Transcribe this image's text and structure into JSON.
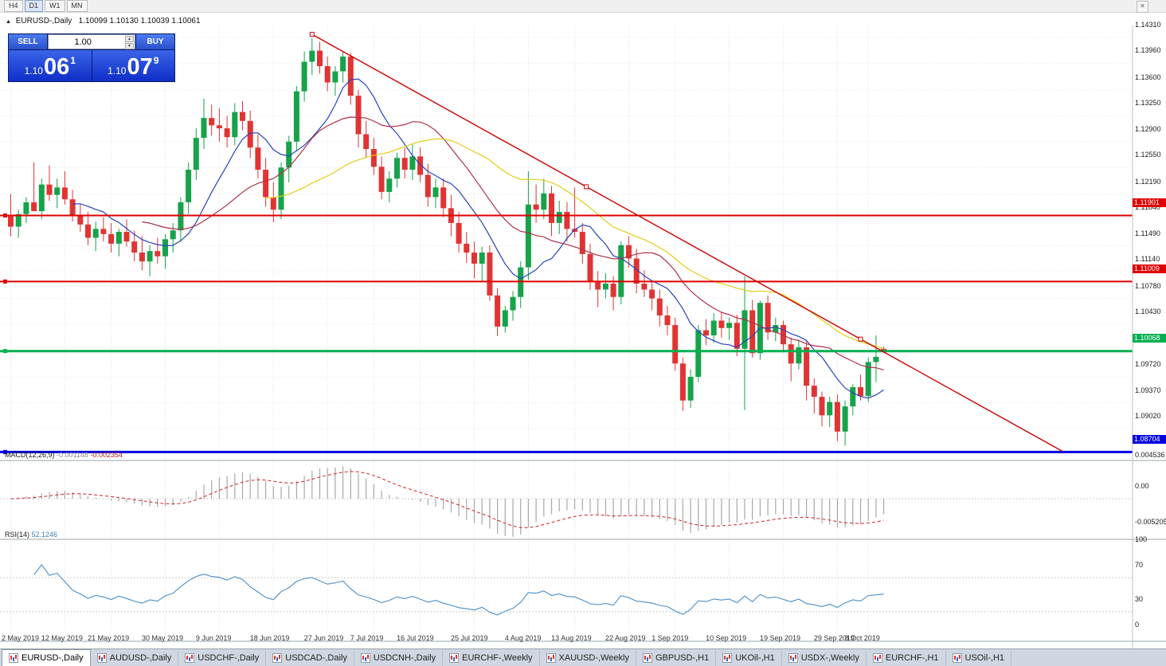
{
  "toolbar": {
    "timeframes": [
      {
        "label": "H4",
        "active": false
      },
      {
        "label": "D1",
        "active": true
      },
      {
        "label": "W1",
        "active": false
      },
      {
        "label": "MN",
        "active": false
      }
    ]
  },
  "chart": {
    "collapse_arrow": "▲",
    "symbol_period": "EURUSD-,Daily",
    "ohlc": "1.10099 1.10130 1.10039 1.10061"
  },
  "one_click": {
    "sell_label": "SELL",
    "buy_label": "BUY",
    "volume": "1.00",
    "sell_price_small": "1.10",
    "sell_price_big": "06",
    "sell_price_sup": "1",
    "buy_price_small": "1.10",
    "buy_price_big": "07",
    "buy_price_sup": "9"
  },
  "chart_data": {
    "type": "candlestick",
    "symbol": "EURUSD-",
    "timeframe": "Daily",
    "ohlc_title": "1.10099 1.10130 1.10039 1.10061",
    "price_range": {
      "max": 1.1447,
      "min": 1.086
    },
    "candle_colors": {
      "up": "#16a34a",
      "down": "#e03434"
    },
    "candles": [
      [
        1.119,
        1.1219,
        1.1162,
        1.1175
      ],
      [
        1.1175,
        1.1198,
        1.116,
        1.1192
      ],
      [
        1.1192,
        1.1215,
        1.118,
        1.1208
      ],
      [
        1.1208,
        1.1262,
        1.1196,
        1.1196
      ],
      [
        1.1196,
        1.124,
        1.1185,
        1.1232
      ],
      [
        1.1232,
        1.1258,
        1.121,
        1.1218
      ],
      [
        1.1218,
        1.124,
        1.12,
        1.1228
      ],
      [
        1.1228,
        1.125,
        1.1205,
        1.1212
      ],
      [
        1.1212,
        1.1225,
        1.1182,
        1.119
      ],
      [
        1.119,
        1.1205,
        1.1168,
        1.1178
      ],
      [
        1.1178,
        1.1195,
        1.115,
        1.116
      ],
      [
        1.116,
        1.1182,
        1.1142,
        1.1172
      ],
      [
        1.1172,
        1.1188,
        1.1155,
        1.1165
      ],
      [
        1.1165,
        1.118,
        1.114,
        1.1152
      ],
      [
        1.1152,
        1.1172,
        1.1135,
        1.1168
      ],
      [
        1.1168,
        1.1185,
        1.1148,
        1.1155
      ],
      [
        1.1155,
        1.117,
        1.1128,
        1.114
      ],
      [
        1.114,
        1.1162,
        1.1116,
        1.1128
      ],
      [
        1.1128,
        1.115,
        1.1108,
        1.1142
      ],
      [
        1.1142,
        1.116,
        1.1125,
        1.1135
      ],
      [
        1.1135,
        1.1165,
        1.1118,
        1.1158
      ],
      [
        1.1158,
        1.118,
        1.114,
        1.117
      ],
      [
        1.117,
        1.1215,
        1.1155,
        1.1208
      ],
      [
        1.1208,
        1.1262,
        1.1192,
        1.1252
      ],
      [
        1.1252,
        1.1308,
        1.1238,
        1.1295
      ],
      [
        1.1295,
        1.1348,
        1.128,
        1.1322
      ],
      [
        1.1322,
        1.134,
        1.1298,
        1.1312
      ],
      [
        1.1312,
        1.1335,
        1.129,
        1.1308
      ],
      [
        1.1308,
        1.1325,
        1.1282,
        1.1296
      ],
      [
        1.1296,
        1.1342,
        1.1285,
        1.133
      ],
      [
        1.133,
        1.1345,
        1.1305,
        1.1318
      ],
      [
        1.1318,
        1.1332,
        1.1268,
        1.1282
      ],
      [
        1.1282,
        1.13,
        1.124,
        1.1252
      ],
      [
        1.1252,
        1.1268,
        1.1202,
        1.1215
      ],
      [
        1.1215,
        1.1235,
        1.1181,
        1.1198
      ],
      [
        1.1198,
        1.1262,
        1.1185,
        1.1255
      ],
      [
        1.1255,
        1.1298,
        1.1235,
        1.129
      ],
      [
        1.129,
        1.1365,
        1.1278,
        1.1358
      ],
      [
        1.1358,
        1.1412,
        1.1344,
        1.1398
      ],
      [
        1.1398,
        1.143,
        1.138,
        1.1413
      ],
      [
        1.1413,
        1.1425,
        1.1382,
        1.1392
      ],
      [
        1.1392,
        1.1405,
        1.1358,
        1.137
      ],
      [
        1.137,
        1.1392,
        1.1352,
        1.1385
      ],
      [
        1.1385,
        1.1412,
        1.137,
        1.1405
      ],
      [
        1.1405,
        1.141,
        1.134,
        1.1352
      ],
      [
        1.1352,
        1.136,
        1.1282,
        1.13
      ],
      [
        1.13,
        1.1318,
        1.1268,
        1.128
      ],
      [
        1.128,
        1.1295,
        1.1245,
        1.1256
      ],
      [
        1.1256,
        1.127,
        1.1212,
        1.1222
      ],
      [
        1.1222,
        1.125,
        1.1208,
        1.124
      ],
      [
        1.124,
        1.1275,
        1.1228,
        1.1268
      ],
      [
        1.1268,
        1.1282,
        1.124,
        1.1252
      ],
      [
        1.1252,
        1.1286,
        1.1238,
        1.127
      ],
      [
        1.127,
        1.1282,
        1.1235,
        1.1245
      ],
      [
        1.1245,
        1.126,
        1.1202,
        1.1215
      ],
      [
        1.1215,
        1.124,
        1.12,
        1.1228
      ],
      [
        1.1228,
        1.124,
        1.1188,
        1.12
      ],
      [
        1.12,
        1.1218,
        1.1162,
        1.118
      ],
      [
        1.118,
        1.1195,
        1.114,
        1.1152
      ],
      [
        1.1152,
        1.1168,
        1.1126,
        1.114
      ],
      [
        1.114,
        1.1155,
        1.1105,
        1.1125
      ],
      [
        1.1125,
        1.1148,
        1.1101,
        1.114
      ],
      [
        1.114,
        1.115,
        1.1075,
        1.1082
      ],
      [
        1.1082,
        1.1092,
        1.1027,
        1.104
      ],
      [
        1.104,
        1.1068,
        1.1032,
        1.1062
      ],
      [
        1.1062,
        1.1088,
        1.1048,
        1.108
      ],
      [
        1.108,
        1.1128,
        1.1065,
        1.112
      ],
      [
        1.112,
        1.125,
        1.1103,
        1.1205
      ],
      [
        1.1205,
        1.1232,
        1.118,
        1.1198
      ],
      [
        1.1198,
        1.124,
        1.1185,
        1.122
      ],
      [
        1.122,
        1.123,
        1.1162,
        1.118
      ],
      [
        1.118,
        1.121,
        1.1165,
        1.1195
      ],
      [
        1.1195,
        1.1208,
        1.1155,
        1.1172
      ],
      [
        1.1172,
        1.1228,
        1.116,
        1.1168
      ],
      [
        1.1168,
        1.118,
        1.1125,
        1.1138
      ],
      [
        1.1138,
        1.1152,
        1.109,
        1.11
      ],
      [
        1.11,
        1.1115,
        1.1066,
        1.109
      ],
      [
        1.109,
        1.1112,
        1.1078,
        1.1098
      ],
      [
        1.1098,
        1.1108,
        1.1062,
        1.108
      ],
      [
        1.108,
        1.1155,
        1.107,
        1.115
      ],
      [
        1.115,
        1.1162,
        1.112,
        1.1132
      ],
      [
        1.1132,
        1.1145,
        1.1085,
        1.1098
      ],
      [
        1.1098,
        1.1116,
        1.108,
        1.109
      ],
      [
        1.109,
        1.1102,
        1.1062,
        1.1078
      ],
      [
        1.1078,
        1.109,
        1.104,
        1.1055
      ],
      [
        1.1055,
        1.1068,
        1.1028,
        1.1042
      ],
      [
        1.1042,
        1.1052,
        1.098,
        1.099
      ],
      [
        1.099,
        1.0998,
        1.0926,
        1.094
      ],
      [
        1.094,
        1.0982,
        1.093,
        1.0972
      ],
      [
        1.0972,
        1.1042,
        1.0965,
        1.1035
      ],
      [
        1.1035,
        1.105,
        1.1015,
        1.1028
      ],
      [
        1.1028,
        1.1058,
        1.1018,
        1.1048
      ],
      [
        1.1048,
        1.106,
        1.1025,
        1.1038
      ],
      [
        1.1038,
        1.1052,
        1.1022,
        1.1045
      ],
      [
        1.1045,
        1.1056,
        1.1,
        1.101
      ],
      [
        1.101,
        1.1108,
        1.0927,
        1.1062
      ],
      [
        1.1062,
        1.1076,
        1.0998,
        1.1004
      ],
      [
        1.1004,
        1.1075,
        1.0995,
        1.1072
      ],
      [
        1.1072,
        1.1082,
        1.1022,
        1.1032
      ],
      [
        1.1032,
        1.1052,
        1.102,
        1.1042
      ],
      [
        1.1042,
        1.1048,
        1.1005,
        1.1016
      ],
      [
        1.1016,
        1.1025,
        1.0966,
        1.099
      ],
      [
        1.099,
        1.1022,
        1.0982,
        1.1012
      ],
      [
        1.1012,
        1.102,
        1.094,
        1.096
      ],
      [
        1.096,
        1.097,
        1.0922,
        1.0945
      ],
      [
        1.0945,
        1.0952,
        1.0905,
        1.092
      ],
      [
        1.092,
        1.0945,
        1.0904,
        1.0938
      ],
      [
        1.0938,
        1.0948,
        1.0885,
        1.0898
      ],
      [
        1.0898,
        1.094,
        1.0879,
        1.0932
      ],
      [
        1.0932,
        1.0962,
        1.092,
        1.0958
      ],
      [
        1.0958,
        1.0975,
        1.094,
        1.0946
      ],
      [
        1.0946,
        1.0998,
        1.0938,
        1.0992
      ],
      [
        1.0992,
        1.1028,
        1.0965,
        1.0999
      ],
      [
        1.10099,
        1.1013,
        1.10039,
        1.10061
      ]
    ],
    "x_labels": [
      {
        "i": 0,
        "t": "2 May 2019"
      },
      {
        "i": 7,
        "t": "12 May 2019"
      },
      {
        "i": 13,
        "t": "21 May 2019"
      },
      {
        "i": 20,
        "t": "30 May 2019"
      },
      {
        "i": 27,
        "t": "9 Jun 2019"
      },
      {
        "i": 34,
        "t": "18 Jun 2019"
      },
      {
        "i": 41,
        "t": "27 Jun 2019"
      },
      {
        "i": 47,
        "t": "7 Jul 2019"
      },
      {
        "i": 53,
        "t": "16 Jul 2019"
      },
      {
        "i": 60,
        "t": "25 Jul 2019"
      },
      {
        "i": 67,
        "t": "4 Aug 2019"
      },
      {
        "i": 73,
        "t": "13 Aug 2019"
      },
      {
        "i": 80,
        "t": "22 Aug 2019"
      },
      {
        "i": 86,
        "t": "1 Sep 2019"
      },
      {
        "i": 93,
        "t": "10 Sep 2019"
      },
      {
        "i": 100,
        "t": "19 Sep 2019"
      },
      {
        "i": 107,
        "t": "29 Sep 2019"
      },
      {
        "i": 111,
        "t": "8 Oct 2019"
      }
    ],
    "y_axis_ticks": [
      "1.14310",
      "1.13960",
      "1.13600",
      "1.13250",
      "1.12900",
      "1.12550",
      "1.12190",
      "1.11840",
      "1.11490",
      "1.11140",
      "1.10780",
      "1.10430",
      "1.09720",
      "1.09370",
      "1.09020"
    ],
    "hlines": [
      {
        "price": 1.11901,
        "label": "1.11901",
        "color": "#e00000",
        "width": 2
      },
      {
        "price": 1.11009,
        "label": "1.11009",
        "color": "#e00000",
        "width": 2
      },
      {
        "price": 1.10068,
        "label": "1.10068",
        "color": "#00b050",
        "width": 3
      },
      {
        "price": 1.08704,
        "label": "1.08704",
        "color": "#0000e0",
        "width": 3
      }
    ],
    "trendline": {
      "color": "#cc0000",
      "points": [
        {
          "i": 39,
          "price": 1.1435
        },
        {
          "i": 110,
          "price": 1.1023
        }
      ],
      "extend_to_i": 136.5
    },
    "moving_averages": [
      {
        "period": 9,
        "color": "#2644b8"
      },
      {
        "period": 18,
        "color": "#b03048"
      },
      {
        "period": 34,
        "color": "#e3cf1c"
      }
    ],
    "macd": {
      "label": "MACD(12,26,9)",
      "value_main": "-0.001148",
      "value_signal": "-0.002354",
      "fast": 12,
      "slow": 26,
      "signal": 9,
      "axis_ticks": [
        "0.004536",
        "0.00",
        "-0.005205"
      ],
      "hist_color": "#a8a8a8",
      "signal_color": "#cc2222"
    },
    "rsi": {
      "label": "RSI(14)",
      "value": "52.1246",
      "period": 14,
      "levels": [
        70,
        30
      ],
      "axis_ticks": [
        "100",
        "70",
        "30",
        "0"
      ],
      "color": "#4a8fc7"
    }
  },
  "tabs": [
    {
      "label": "EURUSD-,Daily",
      "active": true
    },
    {
      "label": "AUDUSD-,Daily",
      "active": false
    },
    {
      "label": "USDCHF-,Daily",
      "active": false
    },
    {
      "label": "USDCAD-,Daily",
      "active": false
    },
    {
      "label": "USDCNH-,Daily",
      "active": false
    },
    {
      "label": "EURCHF-,Weekly",
      "active": false
    },
    {
      "label": "XAUUSD-,Weekly",
      "active": false
    },
    {
      "label": "GBPUSD-,H1",
      "active": false
    },
    {
      "label": "UKOil-,H1",
      "active": false
    },
    {
      "label": "USDX-,Weekly",
      "active": false
    },
    {
      "label": "EURCHF-,H1",
      "active": false
    },
    {
      "label": "USOil-,H1",
      "active": false
    }
  ]
}
